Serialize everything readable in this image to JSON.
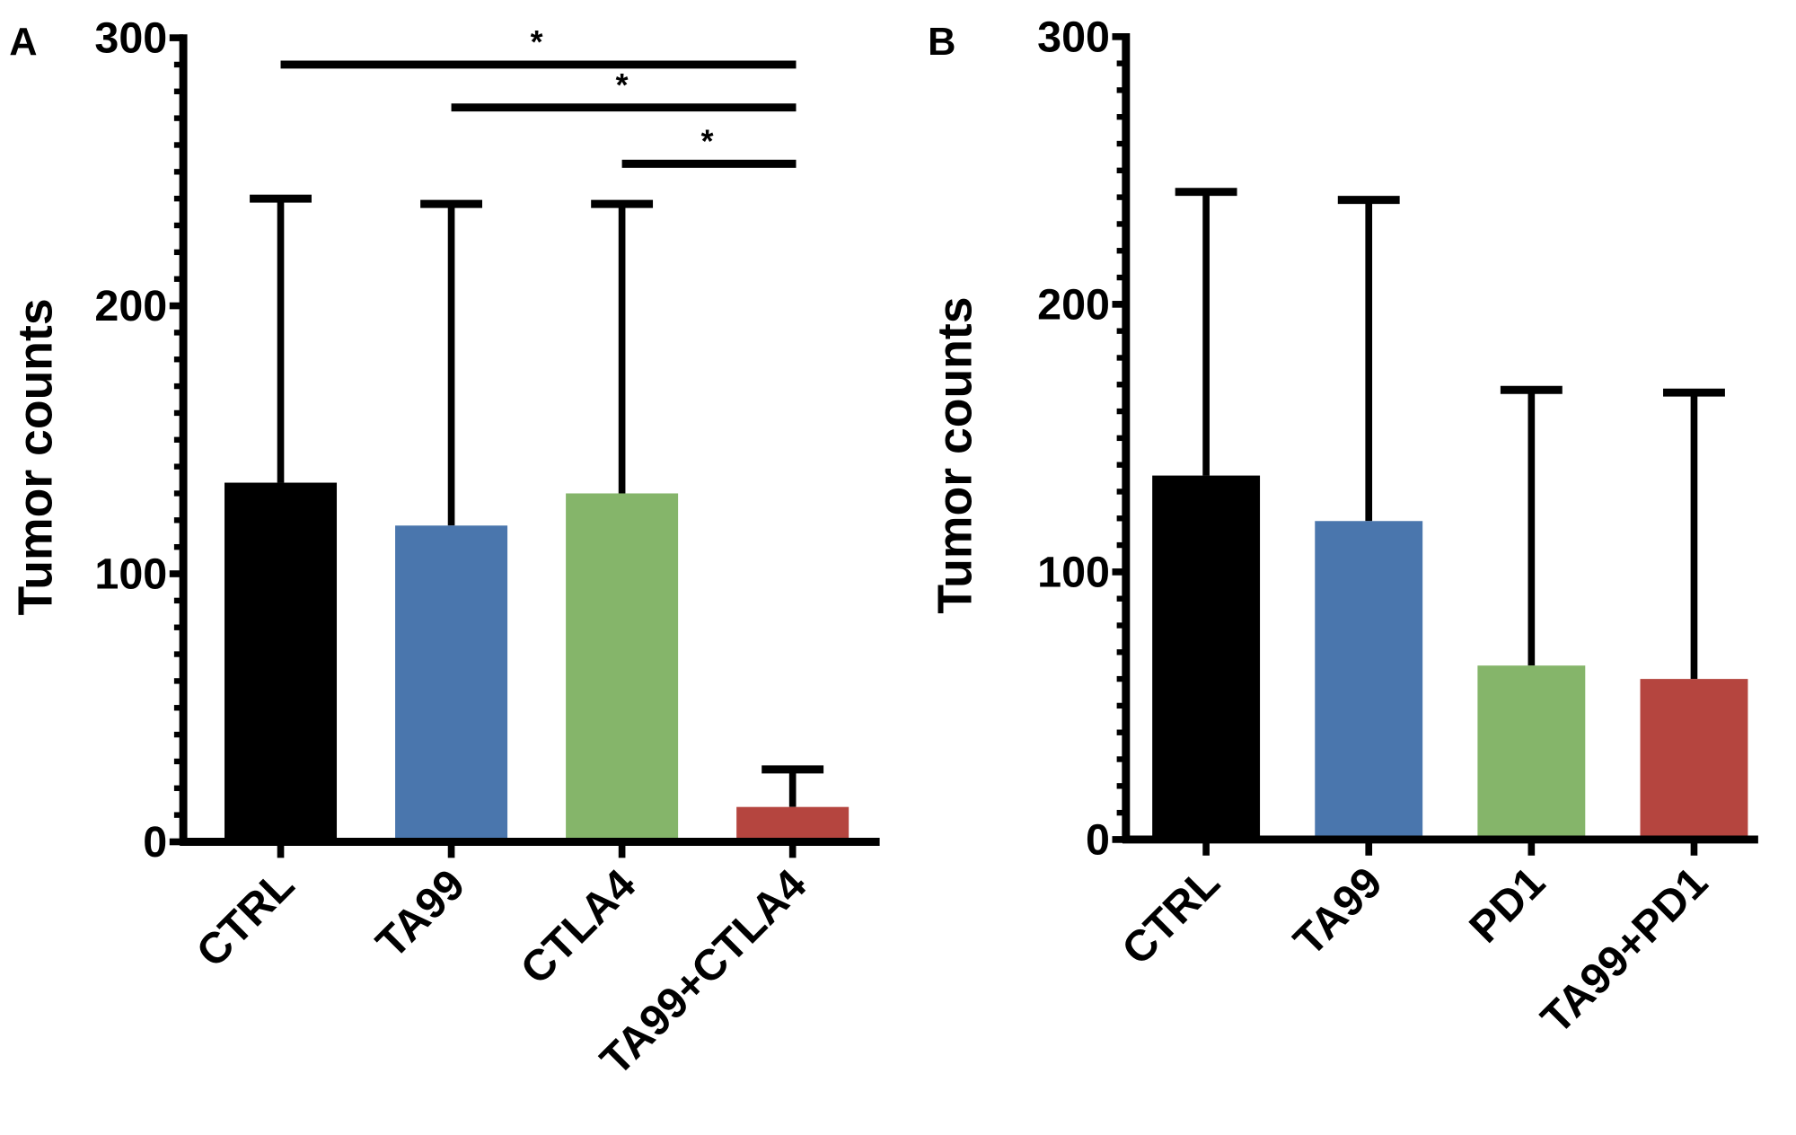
{
  "chart_data": [
    {
      "type": "bar",
      "panel_label": "A",
      "ylabel": "Tumor counts",
      "xlabel": "",
      "ylim": [
        0,
        300
      ],
      "yticks": [
        "0",
        "100",
        "200",
        "300"
      ],
      "grid": false,
      "categories": [
        "CTRL",
        "TA99",
        "CTLA4",
        "TA99+CTLA4"
      ],
      "values": [
        134,
        118,
        130,
        13
      ],
      "error_upper": [
        240,
        238,
        238,
        27
      ],
      "colors": [
        "#000000",
        "#4a76ad",
        "#85b56a",
        "#b5453f"
      ],
      "significance": [
        {
          "from": "CTRL",
          "to": "TA99+CTLA4",
          "label": "*",
          "level": 290
        },
        {
          "from": "TA99",
          "to": "TA99+CTLA4",
          "label": "*",
          "level": 274
        },
        {
          "from": "CTLA4",
          "to": "TA99+CTLA4",
          "label": "*",
          "level": 253
        }
      ]
    },
    {
      "type": "bar",
      "panel_label": "B",
      "ylabel": "Tumor counts",
      "xlabel": "",
      "ylim": [
        0,
        300
      ],
      "yticks": [
        "0",
        "100",
        "200",
        "300"
      ],
      "grid": false,
      "categories": [
        "CTRL",
        "TA99",
        "PD1",
        "TA99+PD1"
      ],
      "values": [
        136,
        119,
        65,
        60
      ],
      "error_upper": [
        242,
        239,
        168,
        167
      ],
      "colors": [
        "#000000",
        "#4a76ad",
        "#85b56a",
        "#b5453f"
      ],
      "significance": []
    }
  ]
}
